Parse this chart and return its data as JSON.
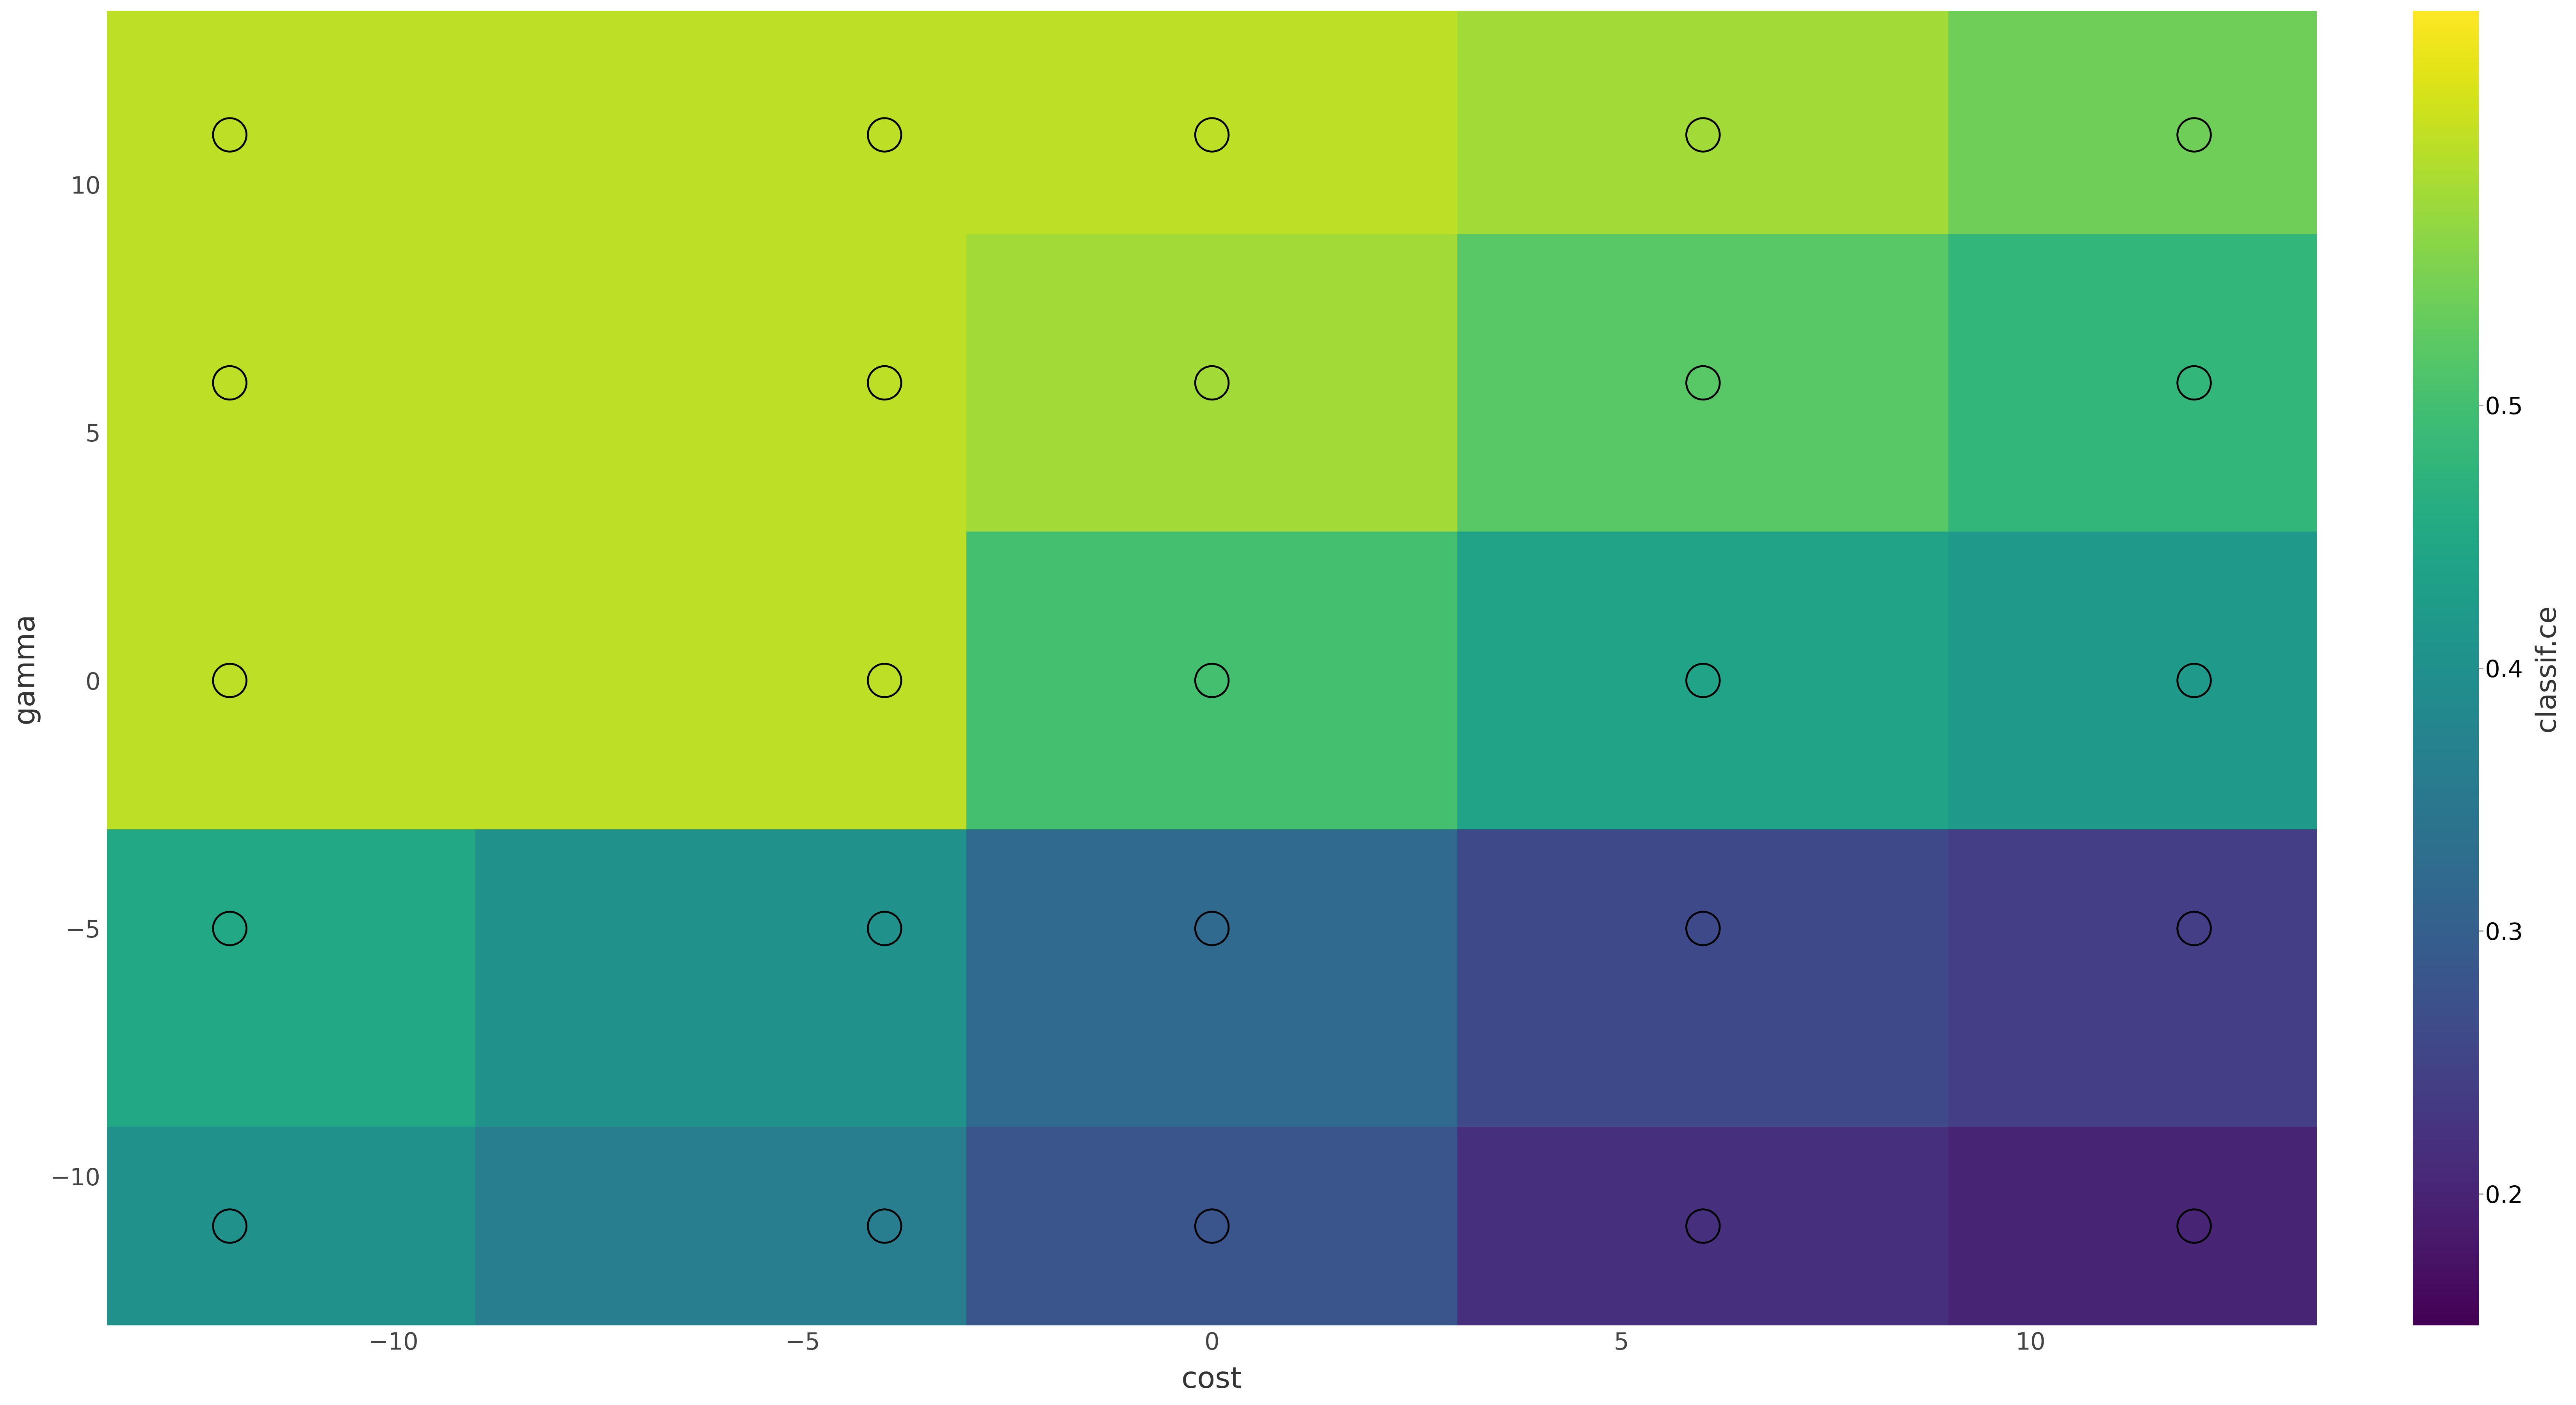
{
  "title": "",
  "xlabel": "cost",
  "ylabel": "gamma",
  "colorbar_label": "classif.ce",
  "xlim": [
    -13.5,
    13.5
  ],
  "ylim": [
    -13.0,
    13.5
  ],
  "x_ticks": [
    -10,
    -5,
    0,
    5,
    10
  ],
  "y_ticks": [
    -10,
    -5,
    0,
    5,
    10
  ],
  "cbar_ticks": [
    0.2,
    0.3,
    0.4,
    0.5
  ],
  "vmin": 0.15,
  "vmax": 0.65,
  "grid_cost": [
    -12,
    -6,
    0,
    6,
    12
  ],
  "grid_gamma": [
    -12,
    -6,
    0,
    6,
    12
  ],
  "cell_size": 6,
  "background_color": "#ffffff",
  "scatter_points": [
    [
      -12,
      11
    ],
    [
      -4,
      11
    ],
    [
      0,
      11
    ],
    [
      6,
      11
    ],
    [
      12,
      11
    ],
    [
      -12,
      6
    ],
    [
      -4,
      6
    ],
    [
      0,
      6
    ],
    [
      6,
      6
    ],
    [
      12,
      6
    ],
    [
      -12,
      0
    ],
    [
      -4,
      0
    ],
    [
      0,
      0
    ],
    [
      6,
      0
    ],
    [
      12,
      0
    ],
    [
      -12,
      -5
    ],
    [
      -4,
      -5
    ],
    [
      0,
      -5
    ],
    [
      6,
      -5
    ],
    [
      12,
      -5
    ],
    [
      -12,
      -11
    ],
    [
      -4,
      -11
    ],
    [
      0,
      -11
    ],
    [
      6,
      -11
    ],
    [
      12,
      -11
    ]
  ],
  "heatmap_values": [
    [
      0.6,
      0.6,
      0.6,
      0.58,
      0.54
    ],
    [
      0.6,
      0.6,
      0.58,
      0.52,
      0.48
    ],
    [
      0.6,
      0.6,
      0.5,
      0.44,
      0.42
    ],
    [
      0.45,
      0.4,
      0.32,
      0.26,
      0.24
    ],
    [
      0.4,
      0.36,
      0.28,
      0.22,
      0.2
    ]
  ],
  "scatter_colors": [
    "#f5e642",
    "#f5e642",
    "#f5e642",
    "#f5e642",
    "#f5e642",
    "#f5e642",
    "#f5e642",
    "#f5e642",
    "#f5e642",
    "#f5e642",
    "#f5e642",
    "#f5e642",
    "#f5e642",
    "#f5e642",
    "#f5e642",
    "#f5e642",
    "#f5e642",
    "#5a2d82",
    "#7a3090",
    "#7a3090",
    "#f5e642",
    "#f5e642",
    "#f5e642",
    "#3a5fa0",
    "#3a1f6e"
  ]
}
